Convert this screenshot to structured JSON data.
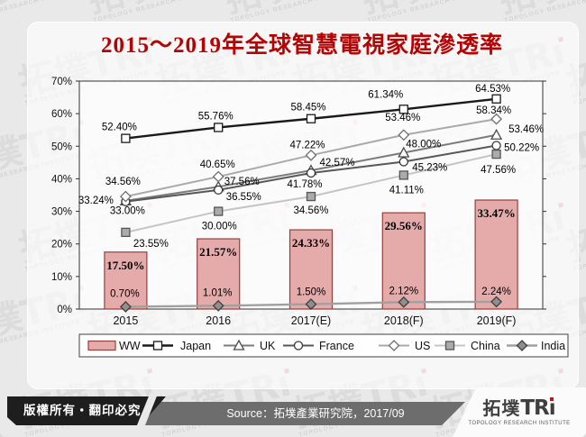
{
  "chart_data": {
    "type": "combo",
    "title": "2015～2019年全球智慧電視家庭滲透率",
    "categories": [
      "2015",
      "2016",
      "2017(E)",
      "2018(F)",
      "2019(F)"
    ],
    "series": [
      {
        "name": "WW",
        "type": "bar",
        "marker": "bar",
        "values": [
          17.5,
          21.57,
          24.33,
          29.56,
          33.47
        ]
      },
      {
        "name": "Japan",
        "type": "line",
        "marker": "square-open",
        "values": [
          52.4,
          55.76,
          58.45,
          61.34,
          64.53
        ]
      },
      {
        "name": "UK",
        "type": "line",
        "marker": "triangle-open",
        "values": [
          33.24,
          37.56,
          42.57,
          48.0,
          53.46
        ]
      },
      {
        "name": "France",
        "type": "line",
        "marker": "circle-open",
        "values": [
          33.0,
          36.55,
          41.78,
          45.23,
          50.22
        ]
      },
      {
        "name": "US",
        "type": "line",
        "marker": "diamond-open",
        "values": [
          34.56,
          40.65,
          47.22,
          53.46,
          58.34
        ]
      },
      {
        "name": "China",
        "type": "line",
        "marker": "square-filled",
        "values": [
          23.55,
          30.0,
          34.56,
          41.11,
          47.56
        ]
      },
      {
        "name": "India",
        "type": "line",
        "marker": "diamond-filled",
        "values": [
          0.7,
          1.01,
          1.5,
          2.12,
          2.24
        ]
      }
    ],
    "ylim": [
      0,
      70
    ],
    "ytick_step": 10,
    "ytick_labels": [
      "0%",
      "10%",
      "20%",
      "30%",
      "40%",
      "50%",
      "60%",
      "70%"
    ],
    "grid": false,
    "legend_position": "bottom",
    "legend_items": [
      "WW",
      "Japan",
      "UK",
      "France",
      "US",
      "China",
      "India"
    ]
  },
  "footer": {
    "copyright": "版權所有‧翻印必究",
    "source": "Source：拓墣產業研究院，2017/09"
  },
  "logo": {
    "cjk": "拓墣",
    "latin": "TR",
    "subtitle": "TOPOLOGY RESEARCH INSTITUTE"
  },
  "watermark": {
    "cjk": "拓墣",
    "latin": "TR",
    "subtitle": "TOPOLOGY RESEARCH INSTITUTE"
  },
  "colors": {
    "title": "#b40404",
    "bar_fill": "#e5abab",
    "bar_border": "#96403d",
    "badge_bg": "#1e1e1e",
    "source_bg": "#6d6d6d",
    "logo_dot": "#cc1111"
  }
}
